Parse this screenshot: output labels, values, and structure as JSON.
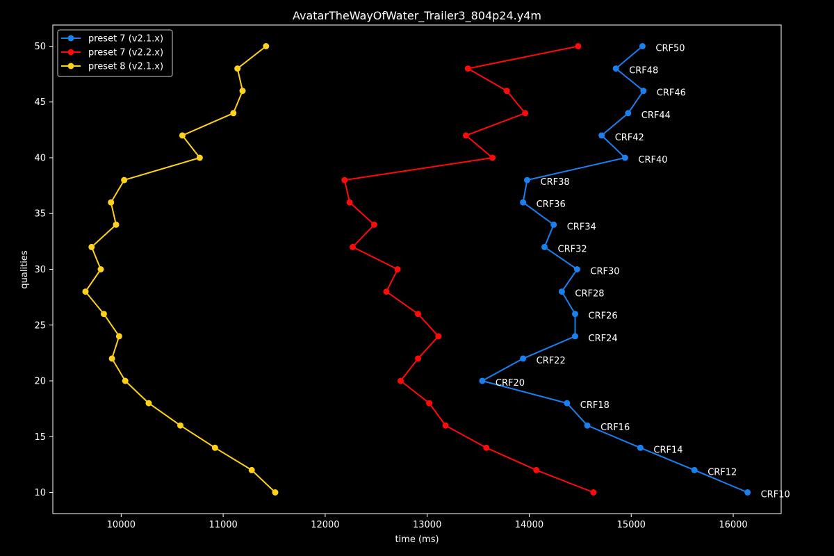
{
  "chart_data": {
    "type": "line",
    "title": "AvatarTheWayOfWater_Trailer3_804p24.y4m",
    "xlabel": "time (ms)",
    "ylabel": "qualities",
    "xlim": [
      9330,
      16470
    ],
    "ylim": [
      8.1,
      51.9
    ],
    "xticks": [
      10000,
      11000,
      12000,
      13000,
      14000,
      15000,
      16000
    ],
    "yticks": [
      10,
      15,
      20,
      25,
      30,
      35,
      40,
      45,
      50
    ],
    "grid": false,
    "legend_position": "top-left",
    "annotated_series": 0,
    "point_labels": [
      "CRF10",
      "CRF12",
      "CRF14",
      "CRF16",
      "CRF18",
      "CRF20",
      "CRF22",
      "CRF24",
      "CRF26",
      "CRF28",
      "CRF30",
      "CRF32",
      "CRF34",
      "CRF36",
      "CRF38",
      "CRF40",
      "CRF42",
      "CRF44",
      "CRF46",
      "CRF48",
      "CRF50"
    ],
    "series": [
      {
        "name": "preset 7 (v2.1.x)",
        "color": "#1a80f0",
        "points": [
          [
            16140,
            10
          ],
          [
            15620,
            12
          ],
          [
            15090,
            14
          ],
          [
            14570,
            16
          ],
          [
            14370,
            18
          ],
          [
            13540,
            20
          ],
          [
            13940,
            22
          ],
          [
            14450,
            24
          ],
          [
            14450,
            26
          ],
          [
            14320,
            28
          ],
          [
            14470,
            30
          ],
          [
            14150,
            32
          ],
          [
            14240,
            34
          ],
          [
            13940,
            36
          ],
          [
            13980,
            38
          ],
          [
            14940,
            40
          ],
          [
            14710,
            42
          ],
          [
            14970,
            44
          ],
          [
            15120,
            46
          ],
          [
            14850,
            48
          ],
          [
            15110,
            50
          ]
        ]
      },
      {
        "name": "preset 7 (v2.2.x)",
        "color": "#ff0a0a",
        "points": [
          [
            14630,
            10
          ],
          [
            14070,
            12
          ],
          [
            13580,
            14
          ],
          [
            13180,
            16
          ],
          [
            13020,
            18
          ],
          [
            12740,
            20
          ],
          [
            12910,
            22
          ],
          [
            13110,
            24
          ],
          [
            12910,
            26
          ],
          [
            12600,
            28
          ],
          [
            12710,
            30
          ],
          [
            12270,
            32
          ],
          [
            12480,
            34
          ],
          [
            12240,
            36
          ],
          [
            12190,
            38
          ],
          [
            13640,
            40
          ],
          [
            13380,
            42
          ],
          [
            13960,
            44
          ],
          [
            13780,
            46
          ],
          [
            13400,
            48
          ],
          [
            14480,
            50
          ]
        ]
      },
      {
        "name": "preset 8 (v2.1.x)",
        "color": "#ffd21a",
        "points": [
          [
            11510,
            10
          ],
          [
            11280,
            12
          ],
          [
            10920,
            14
          ],
          [
            10580,
            16
          ],
          [
            10270,
            18
          ],
          [
            10040,
            20
          ],
          [
            9910,
            22
          ],
          [
            9980,
            24
          ],
          [
            9830,
            26
          ],
          [
            9650,
            28
          ],
          [
            9800,
            30
          ],
          [
            9710,
            32
          ],
          [
            9950,
            34
          ],
          [
            9900,
            36
          ],
          [
            10030,
            38
          ],
          [
            10770,
            40
          ],
          [
            10600,
            42
          ],
          [
            11100,
            44
          ],
          [
            11190,
            46
          ],
          [
            11140,
            48
          ],
          [
            11420,
            50
          ]
        ]
      }
    ]
  }
}
